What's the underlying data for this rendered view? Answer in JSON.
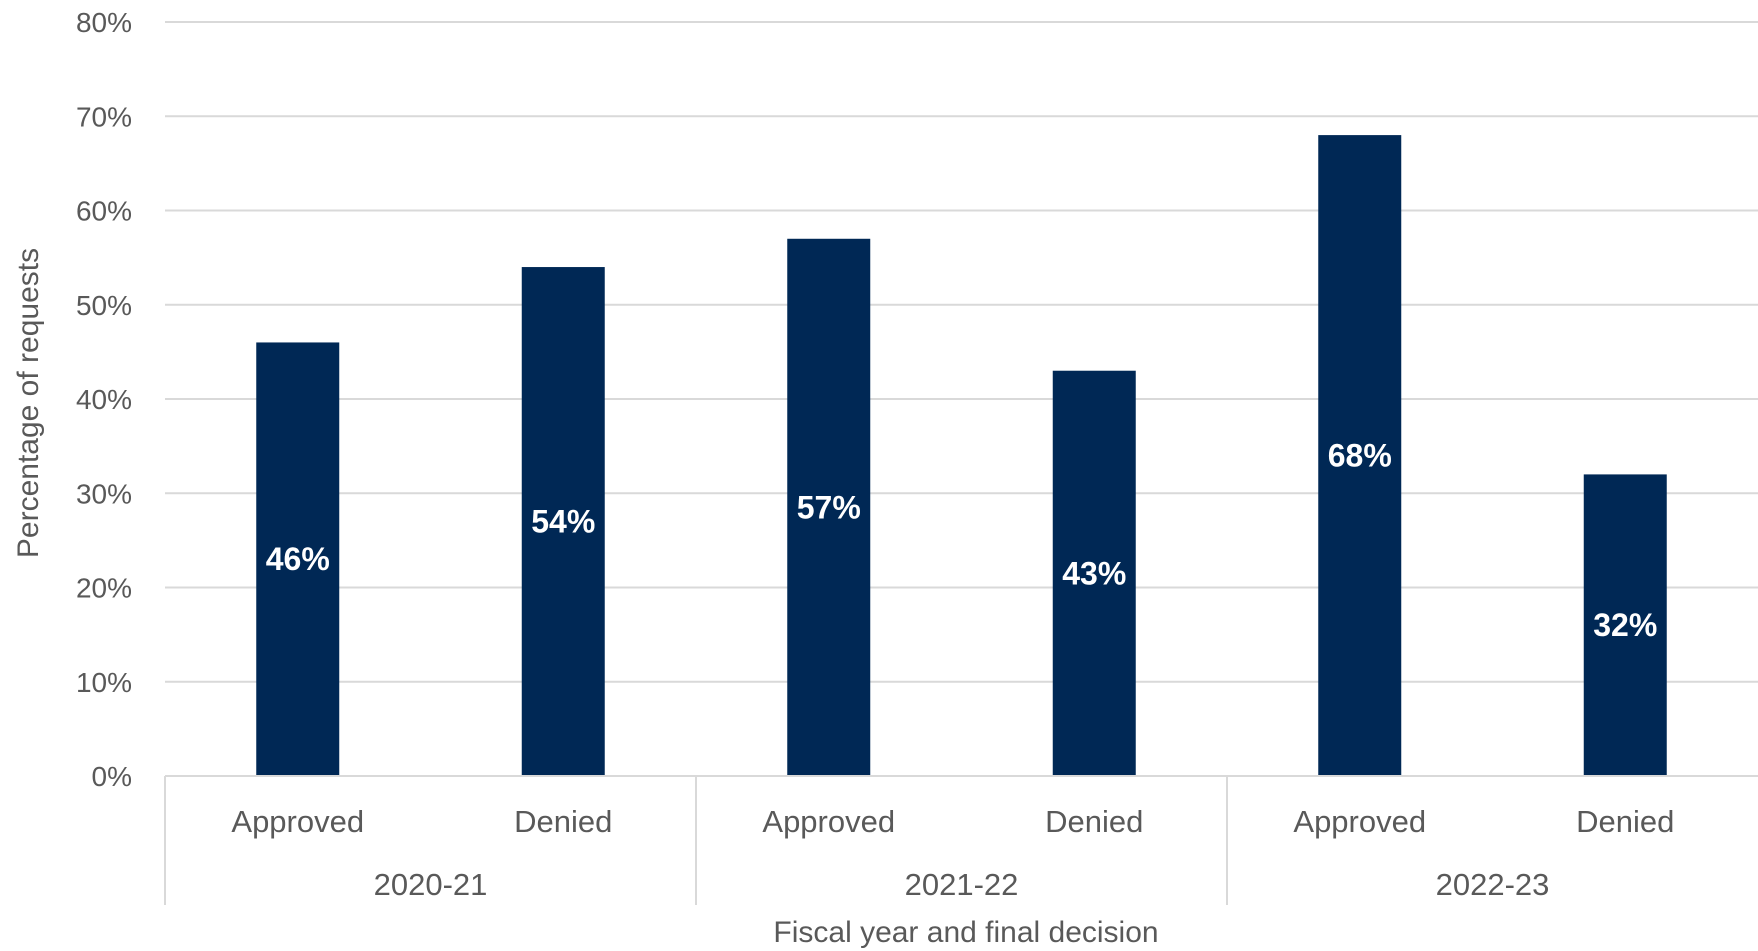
{
  "chart_data": {
    "type": "bar",
    "title": "",
    "xlabel": "Fiscal year and final decision",
    "ylabel": "Percentage of requests",
    "ylim": [
      0,
      80
    ],
    "ytick_step": 10,
    "ytick_format": "{v}%",
    "grid": true,
    "legend": "none",
    "bar_color": "#002855",
    "groups": [
      {
        "label": "2020-21",
        "bars": [
          {
            "category": "Approved",
            "value": 46,
            "label": "46%"
          },
          {
            "category": "Denied",
            "value": 54,
            "label": "54%"
          }
        ]
      },
      {
        "label": "2021-22",
        "bars": [
          {
            "category": "Approved",
            "value": 57,
            "label": "57%"
          },
          {
            "category": "Denied",
            "value": 43,
            "label": "43%"
          }
        ]
      },
      {
        "label": "2022-23",
        "bars": [
          {
            "category": "Approved",
            "value": 68,
            "label": "68%"
          },
          {
            "category": "Denied",
            "value": 32,
            "label": "32%"
          }
        ]
      }
    ]
  }
}
